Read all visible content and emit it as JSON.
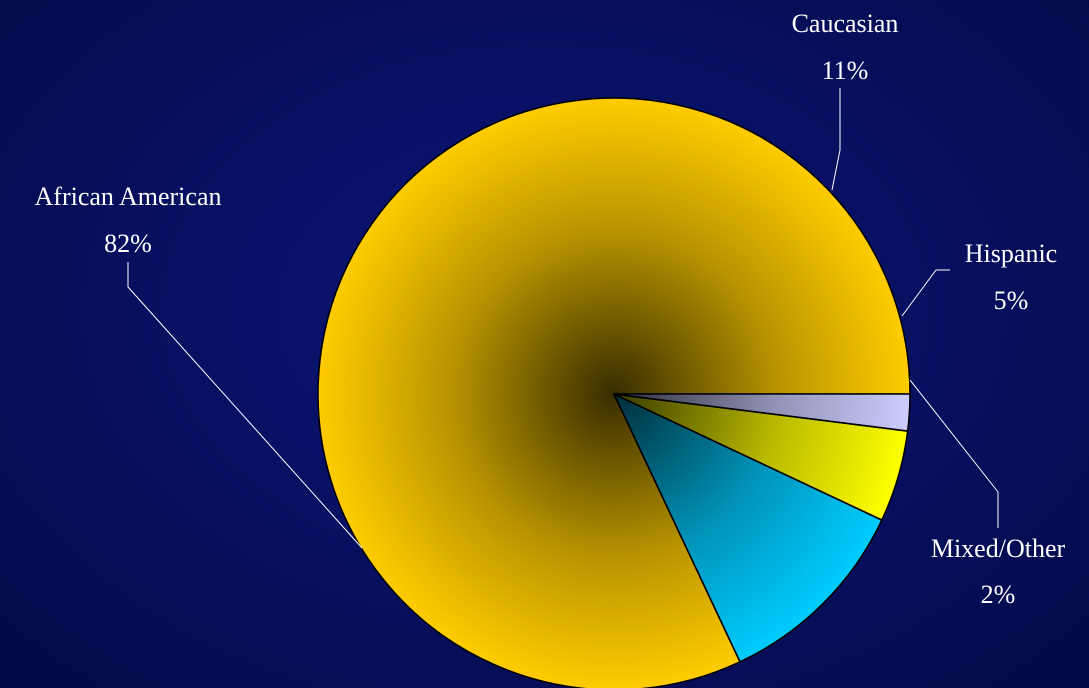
{
  "chart_data": {
    "type": "pie",
    "title": "",
    "slices": [
      {
        "label": "African American",
        "value": 82,
        "value_label": "82%",
        "color": "#ffcc00"
      },
      {
        "label": "Caucasian",
        "value": 11,
        "value_label": "11%",
        "color": "#00ccff"
      },
      {
        "label": "Hispanic",
        "value": 5,
        "value_label": "5%",
        "color": "#ffff00"
      },
      {
        "label": "Mixed/Other",
        "value": 2,
        "value_label": "2%",
        "color": "#ccccff"
      }
    ],
    "start_angle_deg": 0,
    "direction": "counterclockwise",
    "legend": "none"
  }
}
